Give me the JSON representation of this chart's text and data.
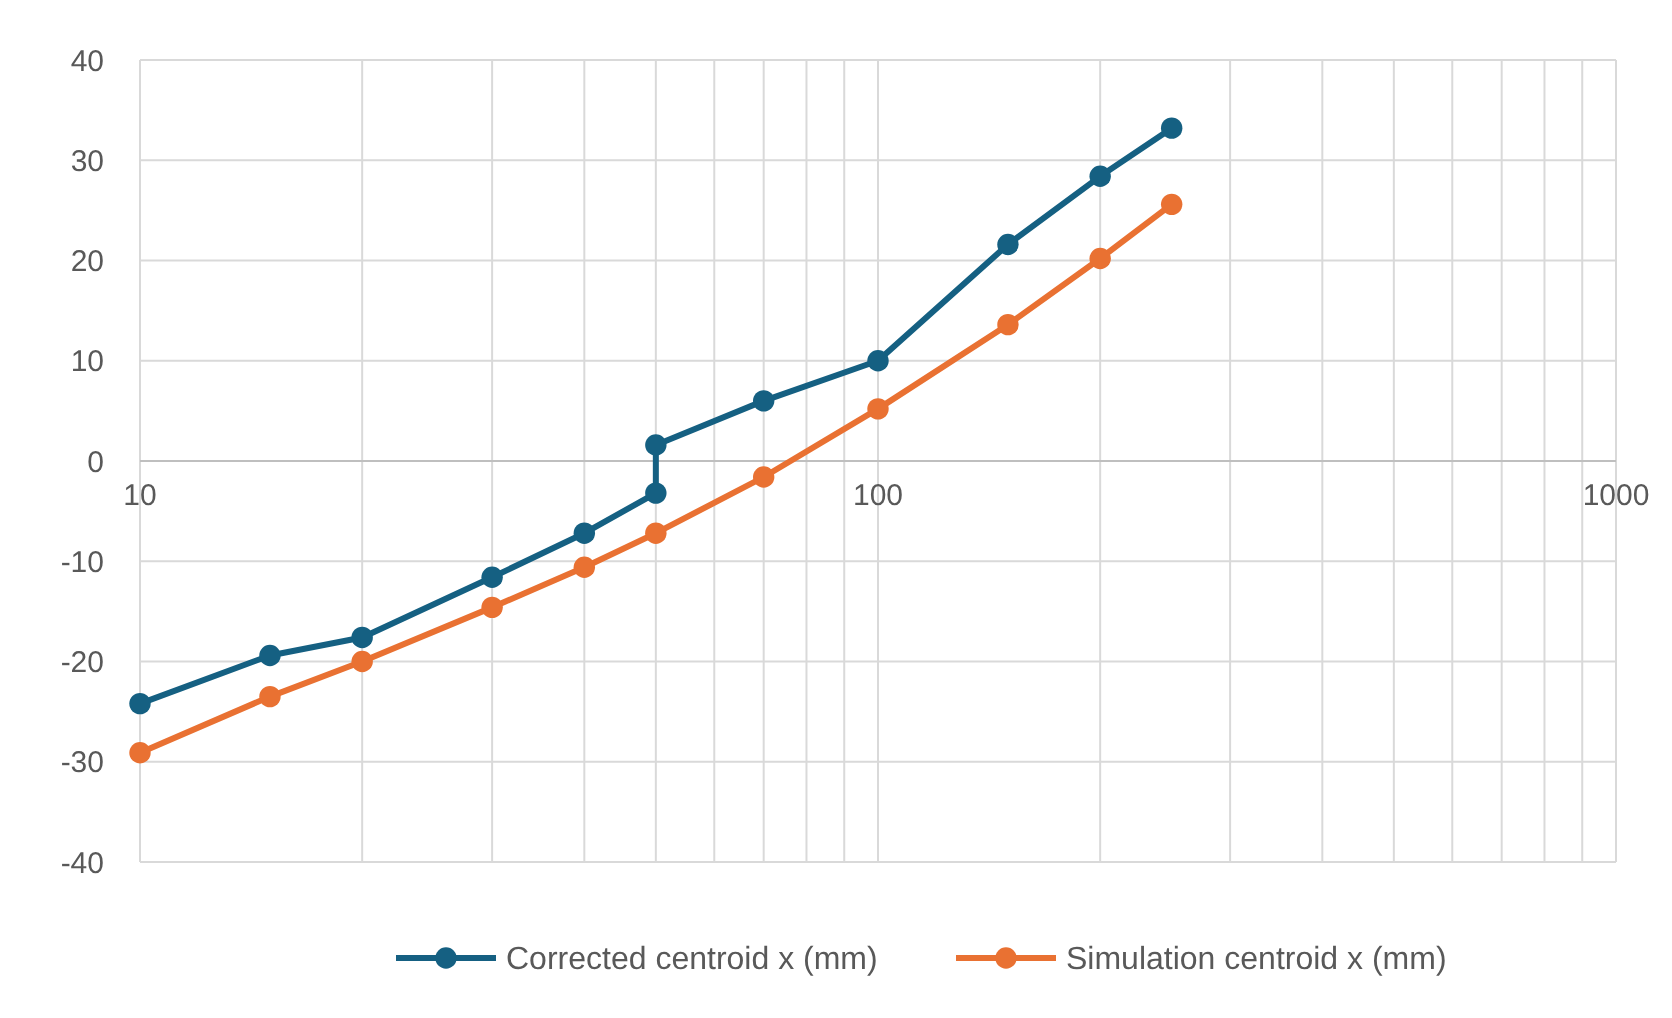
{
  "chart_data": {
    "type": "line",
    "log": "x",
    "grid": true,
    "legend": "bottom",
    "marker": "circle",
    "line_style": "solid",
    "xlim": [
      10,
      1000
    ],
    "xticks": [
      10,
      {
        "value": 20,
        "label": null
      },
      {
        "value": 30,
        "label": null
      },
      {
        "value": 40,
        "label": null
      },
      {
        "value": 50,
        "label": null
      },
      {
        "value": 60,
        "label": null
      },
      {
        "value": 70,
        "label": null
      },
      {
        "value": 80,
        "label": null
      },
      {
        "value": 90,
        "label": null
      },
      100,
      {
        "value": 200,
        "label": null
      },
      {
        "value": 300,
        "label": null
      },
      {
        "value": 400,
        "label": null
      },
      {
        "value": 500,
        "label": null
      },
      {
        "value": 600,
        "label": null
      },
      {
        "value": 700,
        "label": null
      },
      {
        "value": 800,
        "label": null
      },
      {
        "value": 900,
        "label": null
      },
      1000
    ],
    "ylim": [
      -40,
      40
    ],
    "yticks": [
      -40,
      -30,
      -20,
      -10,
      0,
      10,
      20,
      30,
      40
    ],
    "series": [
      {
        "name": "Corrected centroid x (mm)",
        "color": "#156082",
        "x": [
          10,
          15,
          20,
          30,
          40,
          50,
          50,
          70,
          100,
          150,
          200,
          250
        ],
        "values": [
          -24.2,
          -19.4,
          -17.6,
          -11.6,
          -7.2,
          -3.2,
          1.6,
          6,
          10,
          21.6,
          28.4,
          33.2
        ]
      },
      {
        "name": "Simulation centroid x (mm)",
        "color": "#e97132",
        "x": [
          10,
          15,
          20,
          30,
          40,
          50,
          70,
          100,
          150,
          200,
          250
        ],
        "values": [
          -29.1,
          -23.5,
          -20,
          -14.6,
          -10.6,
          -7.2,
          -1.6,
          5.2,
          13.6,
          20.2,
          25.6
        ]
      }
    ]
  }
}
